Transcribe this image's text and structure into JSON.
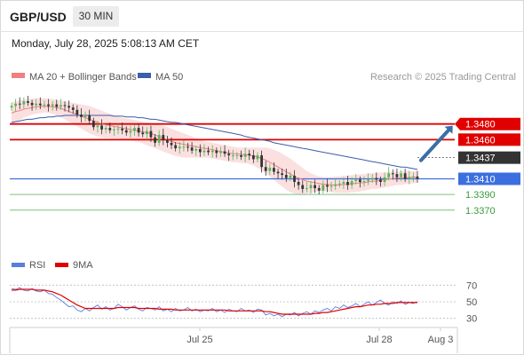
{
  "header": {
    "symbol": "GBP/USD",
    "timeframe": "30 MIN"
  },
  "datetime": "Monday, July 28, 2025 5:08:13 AM CET",
  "legend": {
    "ma20": {
      "label": "MA 20 + Bollinger Bands",
      "color": "#f08080"
    },
    "ma50": {
      "label": "MA 50",
      "color": "#3b5ea8"
    }
  },
  "credit": "Research © 2025 Trading Central",
  "rsi_legend": {
    "rsi": {
      "label": "RSI",
      "color": "#5a7de0"
    },
    "ma9": {
      "label": "9MA",
      "color": "#e00000"
    }
  },
  "colors": {
    "up": "#5ab35a",
    "down": "#333333",
    "resistance": "#e00000",
    "support": "#3b6fe0",
    "minor_support": "#7cc47c",
    "arrow": "#3b6ea8"
  },
  "chart_data": [
    {
      "type": "candlestick",
      "title": "GBP/USD",
      "ylim": [
        1.3355,
        1.3525
      ],
      "x_ticks": [
        "Jul 25",
        "Jul 28",
        "Aug 3"
      ],
      "last_price": 1.3437,
      "levels": [
        {
          "value": 1.348,
          "label": "1.3480",
          "kind": "resistance",
          "highlight": true
        },
        {
          "value": 1.346,
          "label": "1.3460",
          "kind": "resistance",
          "highlight": true
        },
        {
          "value": 1.341,
          "label": "1.3410",
          "kind": "support",
          "highlight": true
        },
        {
          "value": 1.339,
          "label": "1.3390",
          "kind": "minor_support",
          "highlight": false
        },
        {
          "value": 1.337,
          "label": "1.3370",
          "kind": "minor_support",
          "highlight": false
        }
      ],
      "close": [
        1.3503,
        1.3506,
        1.3505,
        1.3509,
        1.3507,
        1.3504,
        1.3506,
        1.3504,
        1.3505,
        1.3503,
        1.3505,
        1.3502,
        1.3504,
        1.3503,
        1.3501,
        1.3498,
        1.3492,
        1.3489,
        1.3491,
        1.3484,
        1.3476,
        1.3478,
        1.3473,
        1.3475,
        1.3472,
        1.3473,
        1.3474,
        1.3472,
        1.3469,
        1.3471,
        1.3475,
        1.3469,
        1.3467,
        1.3471,
        1.3463,
        1.3456,
        1.3466,
        1.346,
        1.3456,
        1.3453,
        1.3449,
        1.3451,
        1.3451,
        1.345,
        1.3446,
        1.3448,
        1.3444,
        1.3446,
        1.3444,
        1.3446,
        1.3443,
        1.3445,
        1.3442,
        1.344,
        1.344,
        1.344,
        1.3438,
        1.3442,
        1.344,
        1.3435,
        1.344,
        1.3425,
        1.342,
        1.3424,
        1.3419,
        1.3417,
        1.3415,
        1.3411,
        1.3414,
        1.3406,
        1.3402,
        1.3397,
        1.3398,
        1.3402,
        1.3398,
        1.3395,
        1.3402,
        1.34,
        1.3401,
        1.3403,
        1.3404,
        1.3406,
        1.3402,
        1.3407,
        1.3409,
        1.3406,
        1.3407,
        1.3409,
        1.3411,
        1.3409,
        1.3406,
        1.3412,
        1.3417,
        1.3416,
        1.3412,
        1.3417,
        1.341,
        1.3412,
        1.3413,
        1.341
      ],
      "ma20": [
        1.3494,
        1.3496,
        1.3497,
        1.3499,
        1.35,
        1.3501,
        1.3502,
        1.3502,
        1.3503,
        1.3502,
        1.3502,
        1.3501,
        1.35,
        1.3498,
        1.3496,
        1.3494,
        1.3492,
        1.349,
        1.3488,
        1.3486,
        1.3484,
        1.3482,
        1.348,
        1.3479,
        1.3478,
        1.3477,
        1.3476,
        1.3475,
        1.3474,
        1.3473,
        1.3472,
        1.3471,
        1.347,
        1.3469,
        1.3468,
        1.3466,
        1.3464,
        1.3462,
        1.346,
        1.3458,
        1.3456,
        1.3455,
        1.3454,
        1.3453,
        1.3452,
        1.3451,
        1.345,
        1.3449,
        1.3448,
        1.3447,
        1.3446,
        1.3445,
        1.3444,
        1.3443,
        1.3442,
        1.3442,
        1.3441,
        1.3441,
        1.344,
        1.3439,
        1.3438,
        1.3436,
        1.3434,
        1.3431,
        1.3428,
        1.3425,
        1.3422,
        1.3419,
        1.3416,
        1.3413,
        1.3411,
        1.3409,
        1.3407,
        1.3406,
        1.3405,
        1.3404,
        1.3403,
        1.3403,
        1.3402,
        1.3402,
        1.3402,
        1.3403,
        1.3403,
        1.3404,
        1.3404,
        1.3405,
        1.3405,
        1.3406,
        1.3407,
        1.3407,
        1.3408,
        1.3409,
        1.341,
        1.341,
        1.3411,
        1.3411,
        1.3411,
        1.3412,
        1.3412,
        1.3412
      ],
      "bb_upper": [
        1.3508,
        1.3509,
        1.351,
        1.3511,
        1.3512,
        1.3512,
        1.3513,
        1.3513,
        1.3513,
        1.3512,
        1.3512,
        1.3511,
        1.351,
        1.3509,
        1.3508,
        1.3507,
        1.3506,
        1.3505,
        1.3504,
        1.3503,
        1.3501,
        1.3499,
        1.3497,
        1.3495,
        1.3493,
        1.3491,
        1.349,
        1.3488,
        1.3487,
        1.3486,
        1.3485,
        1.3484,
        1.3483,
        1.3482,
        1.3481,
        1.348,
        1.3479,
        1.3478,
        1.3476,
        1.3474,
        1.3472,
        1.347,
        1.3468,
        1.3466,
        1.3464,
        1.3462,
        1.346,
        1.3458,
        1.3457,
        1.3456,
        1.3455,
        1.3454,
        1.3453,
        1.3452,
        1.3451,
        1.345,
        1.345,
        1.345,
        1.345,
        1.345,
        1.345,
        1.345,
        1.345,
        1.3449,
        1.3447,
        1.3445,
        1.3442,
        1.3439,
        1.3436,
        1.3432,
        1.3428,
        1.3424,
        1.342,
        1.3417,
        1.3415,
        1.3413,
        1.3412,
        1.3412,
        1.3412,
        1.3413,
        1.3413,
        1.3414,
        1.3414,
        1.3415,
        1.3415,
        1.3416,
        1.3416,
        1.3417,
        1.3417,
        1.3418,
        1.3418,
        1.3418,
        1.3419,
        1.3419,
        1.3419,
        1.342,
        1.342,
        1.342,
        1.342,
        1.342
      ],
      "bb_lower": [
        1.348,
        1.3483,
        1.3485,
        1.3488,
        1.349,
        1.3492,
        1.3493,
        1.3494,
        1.3495,
        1.3494,
        1.3493,
        1.3491,
        1.3489,
        1.3486,
        1.3483,
        1.348,
        1.3477,
        1.3474,
        1.3471,
        1.3468,
        1.3466,
        1.3464,
        1.3463,
        1.3462,
        1.3462,
        1.3462,
        1.3462,
        1.3461,
        1.346,
        1.3459,
        1.3458,
        1.3457,
        1.3455,
        1.3453,
        1.3451,
        1.3449,
        1.3447,
        1.3445,
        1.3443,
        1.3441,
        1.3439,
        1.3438,
        1.3437,
        1.3437,
        1.3437,
        1.3437,
        1.3437,
        1.3437,
        1.3437,
        1.3436,
        1.3435,
        1.3434,
        1.3433,
        1.3432,
        1.3431,
        1.3431,
        1.343,
        1.343,
        1.3429,
        1.3427,
        1.3424,
        1.3421,
        1.3417,
        1.3413,
        1.3409,
        1.3404,
        1.34,
        1.3396,
        1.3393,
        1.3391,
        1.339,
        1.339,
        1.3391,
        1.3392,
        1.3393,
        1.3394,
        1.3394,
        1.3394,
        1.3393,
        1.3392,
        1.3392,
        1.3392,
        1.3392,
        1.3393,
        1.3393,
        1.3394,
        1.3395,
        1.3396,
        1.3397,
        1.3397,
        1.3398,
        1.3399,
        1.34,
        1.3401,
        1.3402,
        1.3402,
        1.3403,
        1.3404,
        1.3404,
        1.3405
      ],
      "ma50": [
        1.3482,
        1.3483,
        1.3484,
        1.3485,
        1.3486,
        1.3486,
        1.3487,
        1.3488,
        1.3488,
        1.3489,
        1.3489,
        1.349,
        1.349,
        1.3491,
        1.3491,
        1.3491,
        1.3491,
        1.3491,
        1.3491,
        1.3491,
        1.3491,
        1.3491,
        1.3491,
        1.3491,
        1.3491,
        1.349,
        1.349,
        1.349,
        1.3489,
        1.3489,
        1.3489,
        1.3488,
        1.3488,
        1.3487,
        1.3486,
        1.3486,
        1.3485,
        1.3484,
        1.3483,
        1.3482,
        1.3482,
        1.3481,
        1.348,
        1.3479,
        1.3478,
        1.3477,
        1.3476,
        1.3475,
        1.3474,
        1.3473,
        1.3472,
        1.3471,
        1.347,
        1.3469,
        1.3468,
        1.3467,
        1.3466,
        1.3464,
        1.3463,
        1.3462,
        1.3461,
        1.346,
        1.3459,
        1.3458,
        1.3456,
        1.3455,
        1.3454,
        1.3453,
        1.3452,
        1.3451,
        1.345,
        1.3449,
        1.3448,
        1.3447,
        1.3446,
        1.3445,
        1.3444,
        1.3443,
        1.3442,
        1.3441,
        1.344,
        1.3439,
        1.3438,
        1.3437,
        1.3436,
        1.3435,
        1.3434,
        1.3433,
        1.3432,
        1.3431,
        1.343,
        1.3429,
        1.3428,
        1.3427,
        1.3426,
        1.3425,
        1.3425,
        1.3424,
        1.3423,
        1.3422
      ]
    },
    {
      "type": "line",
      "title": "RSI",
      "ylim": [
        20,
        80
      ],
      "y_ticks": [
        70,
        50,
        30
      ],
      "series": [
        {
          "name": "RSI",
          "values": [
            66,
            65,
            67,
            64,
            63,
            66,
            63,
            62,
            64,
            60,
            59,
            55,
            52,
            48,
            44,
            45,
            40,
            38,
            42,
            39,
            43,
            46,
            41,
            44,
            40,
            42,
            47,
            44,
            40,
            43,
            45,
            41,
            39,
            43,
            42,
            40,
            44,
            39,
            41,
            38,
            42,
            39,
            40,
            43,
            39,
            41,
            38,
            40,
            39,
            42,
            38,
            40,
            37,
            41,
            39,
            38,
            42,
            39,
            40,
            37,
            41,
            40,
            34,
            36,
            33,
            35,
            32,
            35,
            34,
            37,
            33,
            36,
            38,
            35,
            39,
            37,
            40,
            42,
            39,
            44,
            42,
            46,
            43,
            45,
            48,
            44,
            47,
            50,
            46,
            49,
            52,
            48,
            46,
            50,
            48,
            51,
            47,
            49,
            48,
            50
          ]
        },
        {
          "name": "9MA",
          "values": [
            64,
            64,
            65,
            65,
            65,
            65,
            64,
            64,
            64,
            63,
            62,
            60,
            58,
            55,
            52,
            49,
            46,
            44,
            42,
            42,
            42,
            42,
            42,
            42,
            42,
            42,
            43,
            43,
            43,
            43,
            43,
            42,
            42,
            42,
            42,
            42,
            41,
            41,
            41,
            41,
            40,
            40,
            40,
            40,
            40,
            40,
            40,
            40,
            40,
            40,
            40,
            40,
            40,
            39,
            39,
            39,
            39,
            39,
            39,
            39,
            39,
            39,
            38,
            38,
            37,
            36,
            35,
            35,
            35,
            35,
            35,
            35,
            35,
            35,
            36,
            36,
            37,
            37,
            38,
            39,
            40,
            41,
            42,
            43,
            44,
            44,
            45,
            46,
            46,
            47,
            47,
            48,
            48,
            48,
            49,
            49,
            49,
            49,
            49,
            49
          ]
        }
      ]
    }
  ]
}
